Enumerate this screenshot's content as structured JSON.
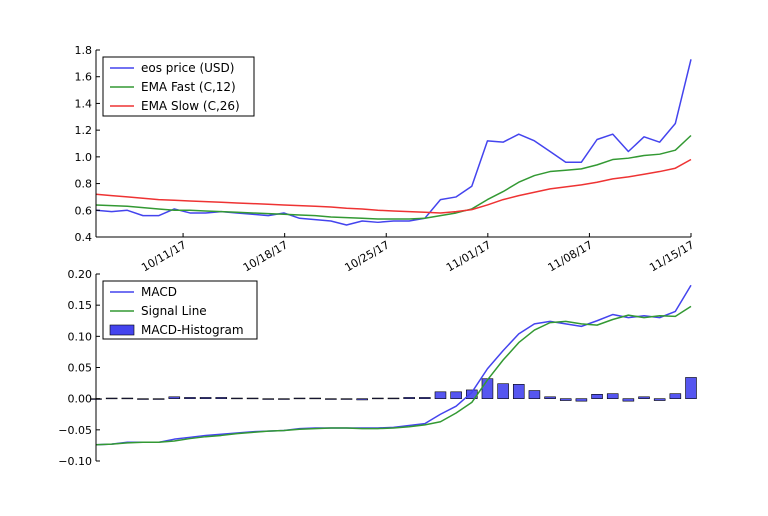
{
  "chart_data": [
    {
      "type": "line",
      "title": "",
      "xlabel": "",
      "ylabel": "",
      "x_start": "10/05/17",
      "x_end": "11/15/17",
      "x_ticks": [
        {
          "date": "10/11/17",
          "label": "10/11/17"
        },
        {
          "date": "10/18/17",
          "label": "10/18/17"
        },
        {
          "date": "10/25/17",
          "label": "10/25/17"
        },
        {
          "date": "11/01/17",
          "label": "11/01/17"
        },
        {
          "date": "11/08/17",
          "label": "11/08/17"
        },
        {
          "date": "11/15/17",
          "label": "11/15/17"
        }
      ],
      "ylim": [
        0.4,
        1.8
      ],
      "y_ticks": [
        0.4,
        0.6,
        0.8,
        1.0,
        1.2,
        1.4,
        1.6,
        1.8
      ],
      "y_tick_labels": [
        "0.4",
        "0.6",
        "0.8",
        "1.0",
        "1.2",
        "1.4",
        "1.6",
        "1.8"
      ],
      "grid": false,
      "legend_position": "top-left",
      "series": [
        {
          "name": "eos price (USD)",
          "color": "#4444ee",
          "values": [
            0.6,
            0.59,
            0.6,
            0.56,
            0.56,
            0.61,
            0.58,
            0.58,
            0.59,
            0.58,
            0.57,
            0.56,
            0.58,
            0.54,
            0.53,
            0.52,
            0.49,
            0.52,
            0.51,
            0.52,
            0.52,
            0.54,
            0.68,
            0.7,
            0.78,
            1.12,
            1.11,
            1.17,
            1.12,
            1.04,
            0.96,
            0.96,
            1.13,
            1.17,
            1.04,
            1.15,
            1.11,
            1.25,
            1.73
          ]
        },
        {
          "name": "EMA Fast (C,12)",
          "color": "#339933",
          "values": [
            0.64,
            0.635,
            0.63,
            0.62,
            0.61,
            0.6,
            0.6,
            0.595,
            0.59,
            0.585,
            0.58,
            0.575,
            0.57,
            0.565,
            0.56,
            0.55,
            0.545,
            0.54,
            0.535,
            0.535,
            0.535,
            0.54,
            0.56,
            0.58,
            0.61,
            0.68,
            0.74,
            0.81,
            0.86,
            0.89,
            0.9,
            0.91,
            0.94,
            0.98,
            0.99,
            1.01,
            1.02,
            1.05,
            1.16
          ]
        },
        {
          "name": "EMA Slow (C,26)",
          "color": "#ee3333",
          "values": [
            0.72,
            0.71,
            0.7,
            0.69,
            0.68,
            0.675,
            0.67,
            0.665,
            0.66,
            0.655,
            0.65,
            0.645,
            0.64,
            0.635,
            0.63,
            0.625,
            0.615,
            0.61,
            0.6,
            0.595,
            0.59,
            0.585,
            0.58,
            0.59,
            0.605,
            0.64,
            0.68,
            0.71,
            0.735,
            0.76,
            0.775,
            0.79,
            0.81,
            0.835,
            0.85,
            0.87,
            0.89,
            0.915,
            0.98
          ]
        }
      ]
    },
    {
      "type": "line",
      "title": "",
      "xlabel": "",
      "ylabel": "",
      "ylim": [
        -0.1,
        0.2
      ],
      "y_ticks": [
        -0.1,
        -0.05,
        0.0,
        0.05,
        0.1,
        0.15,
        0.2
      ],
      "y_tick_labels": [
        "−0.10",
        "−0.05",
        "0.00",
        "0.05",
        "0.10",
        "0.15",
        "0.20"
      ],
      "grid": false,
      "legend_position": "top-left",
      "series": [
        {
          "name": "MACD",
          "color": "#4444ee",
          "kind": "line",
          "values": [
            -0.074,
            -0.073,
            -0.07,
            -0.07,
            -0.07,
            -0.065,
            -0.062,
            -0.059,
            -0.057,
            -0.055,
            -0.053,
            -0.052,
            -0.051,
            -0.048,
            -0.047,
            -0.047,
            -0.047,
            -0.047,
            -0.047,
            -0.046,
            -0.043,
            -0.04,
            -0.025,
            -0.012,
            0.01,
            0.048,
            0.077,
            0.104,
            0.12,
            0.124,
            0.12,
            0.116,
            0.125,
            0.135,
            0.13,
            0.133,
            0.13,
            0.14,
            0.182
          ]
        },
        {
          "name": "Signal Line",
          "color": "#339933",
          "kind": "line",
          "values": [
            -0.074,
            -0.073,
            -0.071,
            -0.07,
            -0.07,
            -0.068,
            -0.064,
            -0.061,
            -0.059,
            -0.056,
            -0.054,
            -0.052,
            -0.051,
            -0.049,
            -0.048,
            -0.047,
            -0.047,
            -0.048,
            -0.048,
            -0.047,
            -0.045,
            -0.042,
            -0.037,
            -0.023,
            -0.006,
            0.03,
            0.062,
            0.09,
            0.11,
            0.122,
            0.124,
            0.12,
            0.118,
            0.127,
            0.134,
            0.13,
            0.133,
            0.132,
            0.148
          ]
        },
        {
          "name": "MACD-Histogram",
          "color": "#4444ee",
          "kind": "bar",
          "values": [
            0.0,
            0.001,
            0.001,
            0.0,
            0.0,
            0.003,
            0.002,
            0.002,
            0.002,
            0.001,
            0.001,
            0.0,
            0.0,
            0.001,
            0.001,
            0.0,
            0.0,
            -0.002,
            0.001,
            0.001,
            0.002,
            0.002,
            0.011,
            0.011,
            0.014,
            0.032,
            0.024,
            0.023,
            0.013,
            0.003,
            -0.003,
            -0.004,
            0.007,
            0.008,
            -0.004,
            0.003,
            -0.003,
            0.008,
            0.034
          ]
        }
      ]
    }
  ]
}
